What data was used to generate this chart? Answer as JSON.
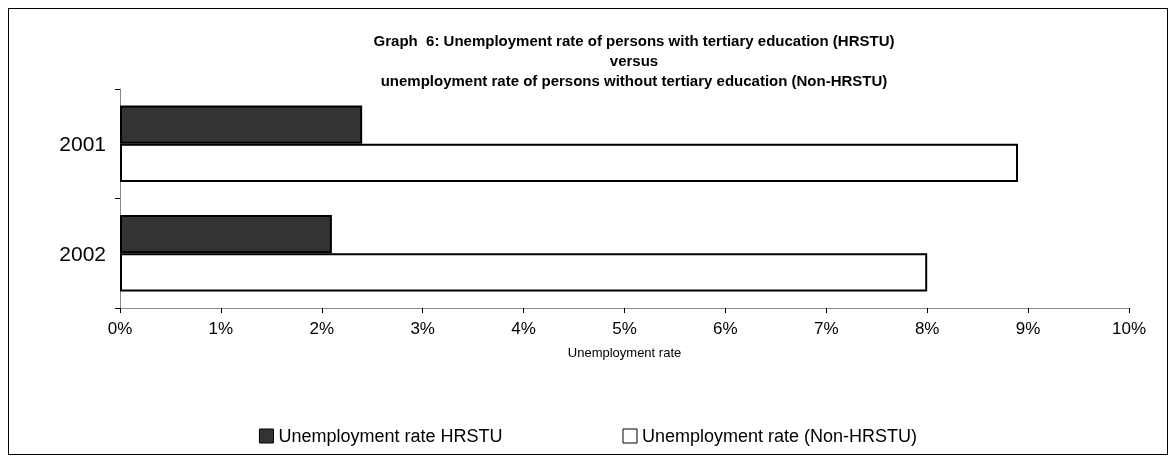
{
  "chart_data": {
    "type": "bar",
    "orientation": "horizontal",
    "title": "Graph  6: Unemployment rate of persons with tertiary education (HRSTU)\nversus\nunemployment rate of persons without tertiary education (Non-HRSTU)",
    "xlabel": "Unemployment rate",
    "categories": [
      "2001",
      "2002"
    ],
    "series": [
      {
        "name": "Unemployment rate HRSTU",
        "color": "#333333",
        "values": [
          2.4,
          2.1
        ]
      },
      {
        "name": "Unemployment rate (Non-HRSTU)",
        "color": "#ffffff",
        "values": [
          8.9,
          8.0
        ]
      }
    ],
    "xlim": [
      0,
      10
    ],
    "xticks": [
      {
        "value": 0,
        "label": "0%"
      },
      {
        "value": 1,
        "label": "1%"
      },
      {
        "value": 2,
        "label": "2%"
      },
      {
        "value": 3,
        "label": "3%"
      },
      {
        "value": 4,
        "label": "4%"
      },
      {
        "value": 5,
        "label": "5%"
      },
      {
        "value": 6,
        "label": "6%"
      },
      {
        "value": 7,
        "label": "7%"
      },
      {
        "value": 8,
        "label": "8%"
      },
      {
        "value": 9,
        "label": "9%"
      },
      {
        "value": 10,
        "label": "10%"
      }
    ],
    "grid": false,
    "legend": "bottom"
  }
}
